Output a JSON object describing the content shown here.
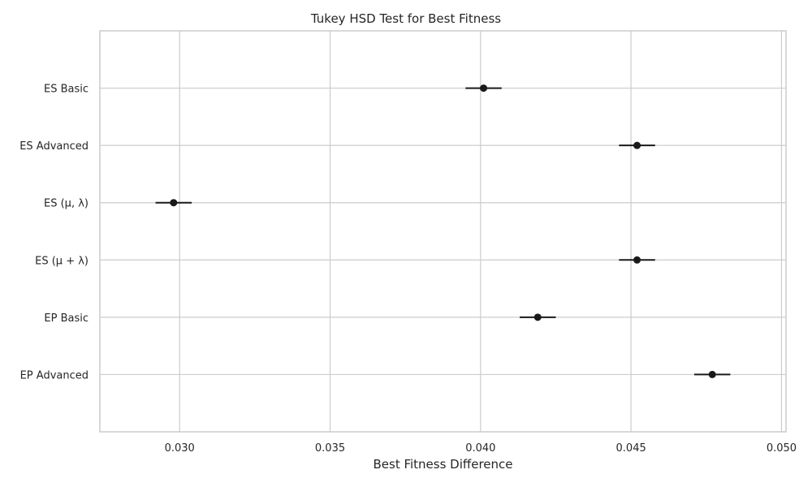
{
  "chart_data": {
    "type": "scatter",
    "title": "Tukey HSD Test for Best Fitness",
    "xlabel": "Best Fitness Difference",
    "ylabel": "",
    "xlim": [
      0.02735,
      0.05015
    ],
    "xticks": [
      0.03,
      0.035,
      0.04,
      0.045,
      0.05
    ],
    "xtick_labels": [
      "0.030",
      "0.035",
      "0.040",
      "0.045",
      "0.050"
    ],
    "grid": true,
    "groups": [
      {
        "label": "ES Basic",
        "mean": 0.0401,
        "low": 0.0395,
        "high": 0.0407
      },
      {
        "label": "ES Advanced",
        "mean": 0.0452,
        "low": 0.0446,
        "high": 0.0458
      },
      {
        "label": "ES (μ, λ)",
        "mean": 0.0298,
        "low": 0.0292,
        "high": 0.0304
      },
      {
        "label": "ES (μ + λ)",
        "mean": 0.0452,
        "low": 0.0446,
        "high": 0.0458
      },
      {
        "label": "EP Basic",
        "mean": 0.0419,
        "low": 0.0413,
        "high": 0.0425
      },
      {
        "label": "EP Advanced",
        "mean": 0.0477,
        "low": 0.0471,
        "high": 0.0483
      }
    ],
    "colors": {
      "marker": "#1a1a1a",
      "grid": "#cccccc",
      "frame": "#cccccc"
    }
  }
}
